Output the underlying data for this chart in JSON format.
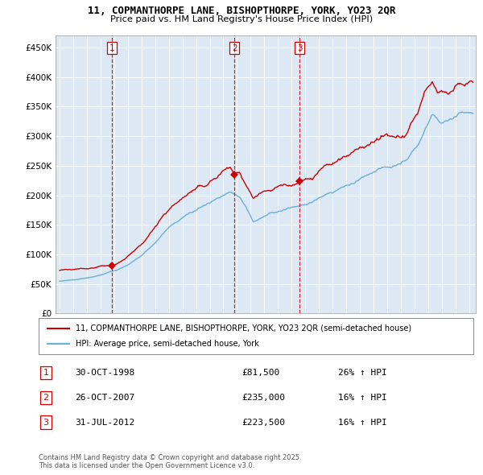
{
  "title": "11, COPMANTHORPE LANE, BISHOPTHORPE, YORK, YO23 2QR",
  "subtitle": "Price paid vs. HM Land Registry's House Price Index (HPI)",
  "legend_line1": "11, COPMANTHORPE LANE, BISHOPTHORPE, YORK, YO23 2QR (semi-detached house)",
  "legend_line2": "HPI: Average price, semi-detached house, York",
  "footnote": "Contains HM Land Registry data © Crown copyright and database right 2025.\nThis data is licensed under the Open Government Licence v3.0.",
  "transactions": [
    {
      "num": 1,
      "date": "30-OCT-1998",
      "price": 81500,
      "price_str": "£81,500",
      "hpi_pct": "26% ↑ HPI",
      "x_year": 1998.83
    },
    {
      "num": 2,
      "date": "26-OCT-2007",
      "price": 235000,
      "price_str": "£235,000",
      "hpi_pct": "16% ↑ HPI",
      "x_year": 2007.82
    },
    {
      "num": 3,
      "date": "31-JUL-2012",
      "price": 223500,
      "price_str": "£223,500",
      "hpi_pct": "16% ↑ HPI",
      "x_year": 2012.58
    }
  ],
  "hpi_color": "#6baed6",
  "price_color": "#cc0000",
  "vline_color": "#cc0000",
  "background_color": "#ffffff",
  "plot_bg_color": "#dce9f5",
  "grid_color": "#ffffff",
  "ylim": [
    0,
    470000
  ],
  "xlim_start": 1994.7,
  "xlim_end": 2025.5,
  "yticks": [
    0,
    50000,
    100000,
    150000,
    200000,
    250000,
    300000,
    350000,
    400000,
    450000
  ],
  "ytick_labels": [
    "£0",
    "£50K",
    "£100K",
    "£150K",
    "£200K",
    "£250K",
    "£300K",
    "£350K",
    "£400K",
    "£450K"
  ],
  "xticks": [
    1995,
    1996,
    1997,
    1998,
    1999,
    2000,
    2001,
    2002,
    2003,
    2004,
    2005,
    2006,
    2007,
    2008,
    2009,
    2010,
    2011,
    2012,
    2013,
    2014,
    2015,
    2016,
    2017,
    2018,
    2019,
    2020,
    2021,
    2022,
    2023,
    2024,
    2025
  ]
}
